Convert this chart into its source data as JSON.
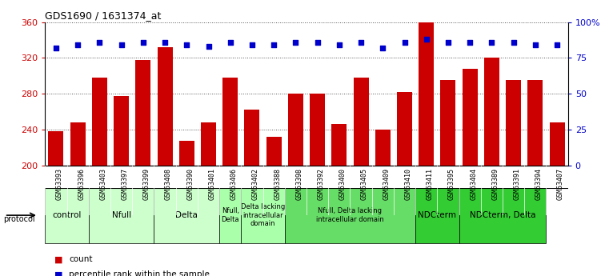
{
  "title": "GDS1690 / 1631374_at",
  "samples": [
    "GSM53393",
    "GSM53396",
    "GSM53403",
    "GSM53397",
    "GSM53399",
    "GSM53408",
    "GSM53390",
    "GSM53401",
    "GSM53406",
    "GSM53402",
    "GSM53388",
    "GSM53398",
    "GSM53392",
    "GSM53400",
    "GSM53405",
    "GSM53409",
    "GSM53410",
    "GSM53411",
    "GSM53395",
    "GSM53404",
    "GSM53389",
    "GSM53391",
    "GSM53394",
    "GSM53407"
  ],
  "counts": [
    238,
    248,
    298,
    278,
    318,
    332,
    228,
    248,
    298,
    262,
    232,
    280,
    280,
    246,
    298,
    240,
    282,
    360,
    295,
    308,
    320,
    295,
    295,
    248
  ],
  "percentile_ranks": [
    82,
    84,
    86,
    84,
    86,
    86,
    84,
    83,
    86,
    84,
    84,
    86,
    86,
    84,
    86,
    82,
    86,
    88,
    86,
    86,
    86,
    86,
    84,
    84
  ],
  "ylim_left": [
    200,
    360
  ],
  "ylim_right": [
    0,
    100
  ],
  "yticks_left": [
    200,
    240,
    280,
    320,
    360
  ],
  "yticks_right": [
    0,
    25,
    50,
    75,
    100
  ],
  "bar_color": "#cc0000",
  "dot_color": "#0000cc",
  "groups": [
    {
      "label": "control",
      "start": 0,
      "end": 1,
      "color": "#ccffcc"
    },
    {
      "label": "Nfull",
      "start": 2,
      "end": 4,
      "color": "#ccffcc"
    },
    {
      "label": "Delta",
      "start": 5,
      "end": 7,
      "color": "#ccffcc"
    },
    {
      "label": "Nfull,\nDelta",
      "start": 8,
      "end": 8,
      "color": "#aaffaa"
    },
    {
      "label": "Delta lacking\nintracellular\ndomain",
      "start": 9,
      "end": 10,
      "color": "#aaffaa"
    },
    {
      "label": "Nfull, Delta lacking\nintracellular domain",
      "start": 11,
      "end": 16,
      "color": "#66dd66"
    },
    {
      "label": "NDCterm",
      "start": 17,
      "end": 18,
      "color": "#33cc33"
    },
    {
      "label": "NDCterm, Delta",
      "start": 19,
      "end": 22,
      "color": "#33cc33"
    }
  ],
  "group_colors": [
    "#ccffcc",
    "#ccffcc",
    "#ccffcc",
    "#aaffaa",
    "#aaffaa",
    "#66dd66",
    "#33cc33",
    "#33cc33"
  ],
  "tick_label_color_left": "#cc0000",
  "tick_label_color_right": "#0000cc",
  "bar_width": 0.7,
  "xtick_bg": "#d8d8d8",
  "plot_bg": "#ffffff",
  "grid_color": "#555555"
}
